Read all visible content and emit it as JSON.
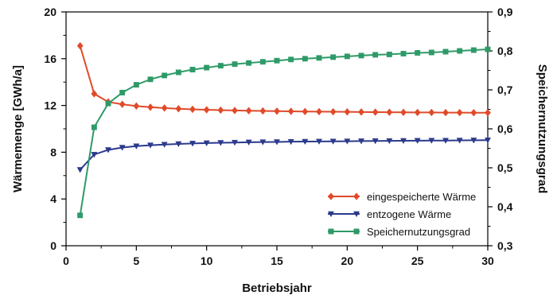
{
  "chart_data": {
    "type": "line",
    "xlabel": "Betriebsjahr",
    "ylabel_left": "Wärmemenge [GWh/a]",
    "ylabel_right": "Speichernutzungsgrad",
    "xlim": [
      0,
      30
    ],
    "ylim_left": [
      0,
      20
    ],
    "ylim_right": [
      0.3,
      0.9
    ],
    "x_ticks": [
      0,
      5,
      10,
      15,
      20,
      25,
      30
    ],
    "y_left_ticks": [
      0,
      4,
      8,
      12,
      16,
      20
    ],
    "y_right_ticks": [
      "0,3",
      "0,4",
      "0,5",
      "0,6",
      "0,7",
      "0,8",
      "0,9"
    ],
    "y_right_tick_values": [
      0.3,
      0.4,
      0.5,
      0.6,
      0.7,
      0.8,
      0.9
    ],
    "grid": false,
    "legend_position": "bottom-right",
    "x": [
      1,
      2,
      3,
      4,
      5,
      6,
      7,
      8,
      9,
      10,
      11,
      12,
      13,
      14,
      15,
      16,
      17,
      18,
      19,
      20,
      21,
      22,
      23,
      24,
      25,
      26,
      27,
      28,
      29,
      30
    ],
    "series": [
      {
        "name": "eingespeicherte Wärme",
        "axis": "left",
        "color": "#e04a2a",
        "marker": "diamond",
        "values": [
          17.1,
          13.0,
          12.3,
          12.1,
          11.95,
          11.85,
          11.78,
          11.72,
          11.67,
          11.63,
          11.6,
          11.57,
          11.55,
          11.53,
          11.51,
          11.5,
          11.48,
          11.47,
          11.46,
          11.45,
          11.44,
          11.43,
          11.42,
          11.41,
          11.4,
          11.4,
          11.39,
          11.39,
          11.38,
          11.38
        ]
      },
      {
        "name": "entzogene Wärme",
        "axis": "left",
        "color": "#2b3a8c",
        "marker": "triangle-down",
        "values": [
          6.5,
          7.8,
          8.2,
          8.4,
          8.52,
          8.6,
          8.66,
          8.71,
          8.75,
          8.78,
          8.81,
          8.83,
          8.85,
          8.87,
          8.88,
          8.9,
          8.91,
          8.92,
          8.93,
          8.94,
          8.95,
          8.96,
          8.97,
          8.98,
          8.99,
          9.0,
          9.0,
          9.01,
          9.02,
          9.03
        ]
      },
      {
        "name": "Speichernutzungsgrad",
        "axis": "right",
        "color": "#2e9a68",
        "marker": "square",
        "values": [
          0.378,
          0.604,
          0.665,
          0.693,
          0.713,
          0.727,
          0.737,
          0.745,
          0.752,
          0.757,
          0.762,
          0.766,
          0.769,
          0.772,
          0.775,
          0.778,
          0.78,
          0.782,
          0.784,
          0.786,
          0.788,
          0.79,
          0.791,
          0.793,
          0.795,
          0.796,
          0.798,
          0.8,
          0.802,
          0.804
        ]
      }
    ]
  }
}
